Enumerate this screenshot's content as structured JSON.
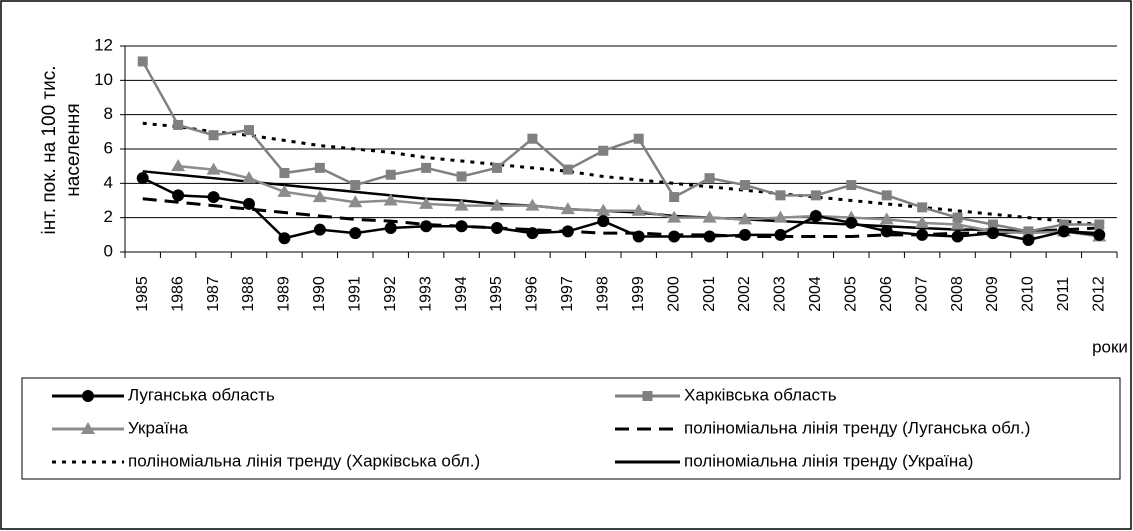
{
  "chart_data": {
    "type": "line",
    "y_label": [
      "інт. пок. на 100 тис.",
      "населення"
    ],
    "x_label": "роки",
    "categories": [
      "1985",
      "1986",
      "1987",
      "1988",
      "1989",
      "1990",
      "1991",
      "1992",
      "1993",
      "1994",
      "1995",
      "1996",
      "1997",
      "1998",
      "1999",
      "2000",
      "2001",
      "2002",
      "2003",
      "2004",
      "2005",
      "2006",
      "2007",
      "2008",
      "2009",
      "2010",
      "2011",
      "2012"
    ],
    "ylim": [
      0,
      12
    ],
    "yticks": [
      0,
      2,
      4,
      6,
      8,
      10,
      12
    ],
    "grid": true,
    "series": [
      {
        "name": "Луганська область",
        "color": "#000000",
        "style": "solid",
        "marker": "circle",
        "values": [
          4.3,
          3.3,
          3.2,
          2.8,
          0.8,
          1.3,
          1.1,
          1.4,
          1.5,
          1.5,
          1.4,
          1.1,
          1.2,
          1.8,
          0.9,
          0.9,
          0.9,
          1.0,
          1.0,
          2.1,
          1.7,
          1.2,
          1.0,
          0.9,
          1.1,
          0.7,
          1.2,
          1.0
        ]
      },
      {
        "name": "Харківська область",
        "color": "#808080",
        "style": "solid",
        "marker": "square",
        "values": [
          11.1,
          7.4,
          6.8,
          7.1,
          4.6,
          4.9,
          3.9,
          4.5,
          4.9,
          4.4,
          4.9,
          6.6,
          4.8,
          5.9,
          6.6,
          3.2,
          4.3,
          3.9,
          3.3,
          3.3,
          3.9,
          3.3,
          2.6,
          2.0,
          1.6,
          1.2,
          1.6,
          1.6
        ]
      },
      {
        "name": "Україна",
        "color": "#8c8c8c",
        "style": "solid",
        "marker": "triangle",
        "values": [
          null,
          5.0,
          4.8,
          4.3,
          3.5,
          3.2,
          2.9,
          3.0,
          2.8,
          2.7,
          2.7,
          2.7,
          2.5,
          2.4,
          2.4,
          2.0,
          2.0,
          1.9,
          2.0,
          2.1,
          2.0,
          1.9,
          1.7,
          1.6,
          1.2,
          1.1,
          1.2,
          0.9
        ]
      },
      {
        "name": "поліноміальна лінія тренду (Луганська обл.)",
        "color": "#000000",
        "style": "dashed",
        "marker": "none",
        "values": [
          3.1,
          2.9,
          2.7,
          2.5,
          2.3,
          2.1,
          1.9,
          1.8,
          1.6,
          1.5,
          1.4,
          1.3,
          1.2,
          1.1,
          1.1,
          1.0,
          1.0,
          0.9,
          0.9,
          0.9,
          0.9,
          1.0,
          1.0,
          1.1,
          1.1,
          1.2,
          1.3,
          1.4
        ]
      },
      {
        "name": "поліноміальна лінія тренду (Харківська обл.)",
        "color": "#000000",
        "style": "dotted",
        "marker": "none",
        "values": [
          7.5,
          7.3,
          7.0,
          6.8,
          6.5,
          6.2,
          6.0,
          5.8,
          5.5,
          5.3,
          5.1,
          4.9,
          4.7,
          4.4,
          4.2,
          4.0,
          3.8,
          3.6,
          3.4,
          3.2,
          3.0,
          2.8,
          2.6,
          2.4,
          2.2,
          2.0,
          1.8,
          1.6
        ]
      },
      {
        "name": "поліноміальна лінія тренду (Україна)",
        "color": "#000000",
        "style": "solid",
        "marker": "none",
        "values": [
          4.7,
          4.5,
          4.3,
          4.1,
          3.9,
          3.7,
          3.5,
          3.3,
          3.1,
          3.0,
          2.8,
          2.7,
          2.5,
          2.4,
          2.3,
          2.1,
          2.0,
          1.9,
          1.8,
          1.7,
          1.6,
          1.5,
          1.4,
          1.3,
          1.3,
          1.2,
          1.2,
          1.1
        ]
      }
    ]
  }
}
